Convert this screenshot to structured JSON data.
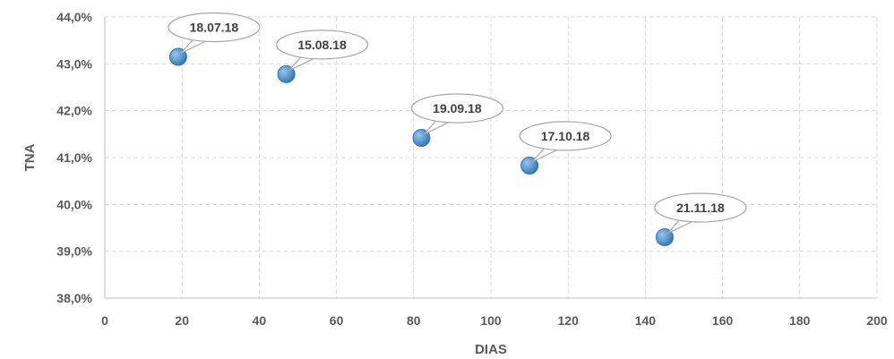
{
  "chart_data": {
    "type": "scatter",
    "xlabel": "DIAS",
    "ylabel": "TNA",
    "xlim": [
      0,
      200
    ],
    "ylim": [
      38,
      44
    ],
    "x_ticks": [
      0,
      20,
      40,
      60,
      80,
      100,
      120,
      140,
      160,
      180,
      200
    ],
    "x_tick_labels": [
      "0",
      "20",
      "40",
      "60",
      "80",
      "100",
      "120",
      "140",
      "160",
      "180",
      "200"
    ],
    "y_ticks": [
      38,
      39,
      40,
      41,
      42,
      43,
      44
    ],
    "y_tick_labels": [
      "38,0%",
      "39,0%",
      "40,0%",
      "41,0%",
      "42,0%",
      "43,0%",
      "44,0%"
    ],
    "grid": true,
    "series": [
      {
        "points": [
          {
            "x": 19,
            "y": 43.15,
            "label": "18.07.18"
          },
          {
            "x": 47,
            "y": 42.78,
            "label": "15.08.18"
          },
          {
            "x": 82,
            "y": 41.42,
            "label": "19.09.18"
          },
          {
            "x": 110,
            "y": 40.83,
            "label": "17.10.18"
          },
          {
            "x": 145,
            "y": 39.3,
            "label": "21.11.18"
          }
        ]
      }
    ]
  },
  "colors": {
    "marker": "#5b9bd5",
    "marker_dark": "#2e75b6"
  }
}
